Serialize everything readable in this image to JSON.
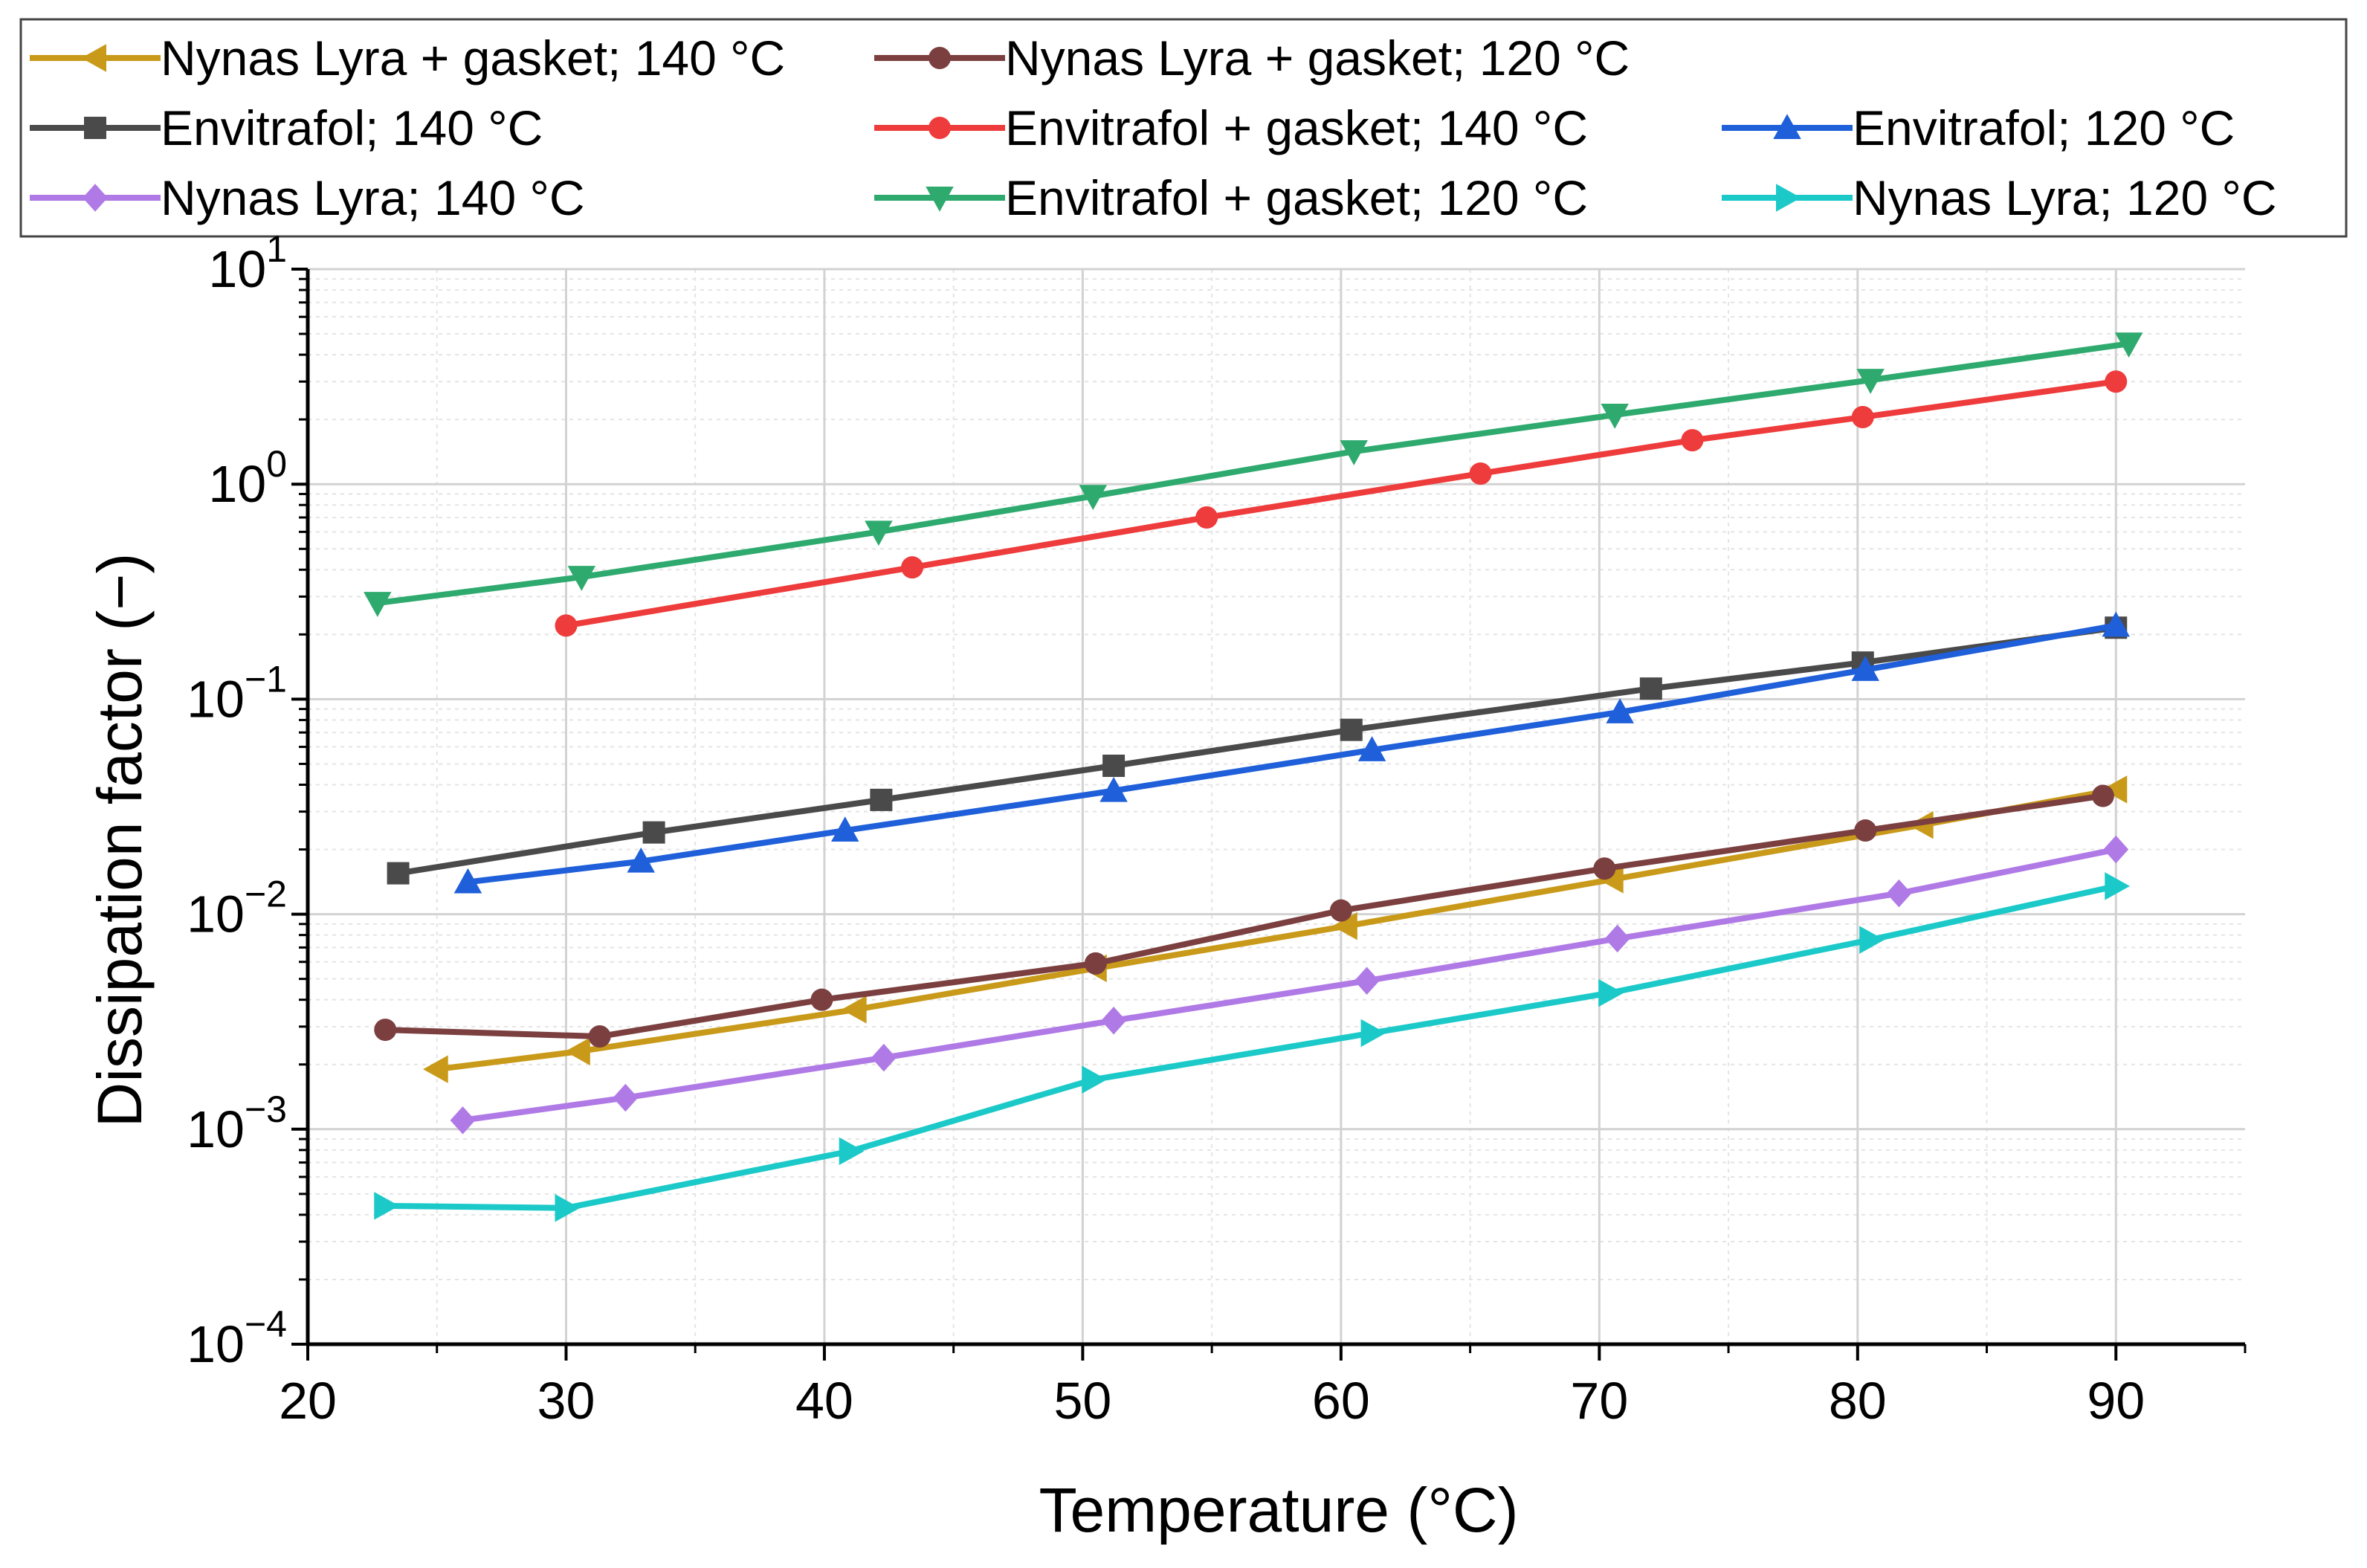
{
  "chart_data": {
    "type": "line",
    "title": "",
    "xlabel": "Temperature (°C)",
    "ylabel": "Dissipation factor (−)",
    "xlim": [
      20,
      95
    ],
    "ylim": [
      0.0001,
      10
    ],
    "yscale": "log",
    "grid": true,
    "legend_position": "top",
    "x_ticks": [
      {
        "value": 20,
        "label": "20"
      },
      {
        "value": 30,
        "label": "30"
      },
      {
        "value": 40,
        "label": "40"
      },
      {
        "value": 50,
        "label": "50"
      },
      {
        "value": 60,
        "label": "60"
      },
      {
        "value": 70,
        "label": "70"
      },
      {
        "value": 80,
        "label": "80"
      },
      {
        "value": 90,
        "label": "90"
      }
    ],
    "y_ticks": [
      {
        "exponent": -4,
        "base": "10",
        "sup": "−4"
      },
      {
        "exponent": -3,
        "base": "10",
        "sup": "−3"
      },
      {
        "exponent": -2,
        "base": "10",
        "sup": "−2"
      },
      {
        "exponent": -1,
        "base": "10",
        "sup": "−1"
      },
      {
        "exponent": 0,
        "base": "10",
        "sup": "0"
      },
      {
        "exponent": 1,
        "base": "10",
        "sup": "1"
      }
    ],
    "series": [
      {
        "name": "Nynas Lyra + gasket; 140 °C",
        "color": "#C99A19",
        "marker": "triangle-left",
        "x": [
          25,
          30.5,
          41.2,
          50.5,
          60.2,
          70.5,
          82.5,
          90
        ],
        "y": [
          0.0019,
          0.0023,
          0.0036,
          0.0056,
          0.0088,
          0.0145,
          0.026,
          0.038
        ]
      },
      {
        "name": "Nynas Lyra + gasket; 120 °C",
        "color": "#7B3F3F",
        "marker": "circle",
        "x": [
          23,
          31.3,
          39.9,
          50.5,
          60,
          70.2,
          80.3,
          89.5
        ],
        "y": [
          0.0029,
          0.0027,
          0.004,
          0.0059,
          0.0104,
          0.0163,
          0.0245,
          0.0355
        ]
      },
      {
        "name": "Envitrafol; 140 °C",
        "color": "#4A4A4A",
        "marker": "square",
        "x": [
          23.5,
          33.4,
          42.2,
          51.2,
          60.4,
          72,
          80.2,
          90
        ],
        "y": [
          0.0155,
          0.024,
          0.034,
          0.049,
          0.072,
          0.112,
          0.148,
          0.215
        ]
      },
      {
        "name": "Envitrafol + gasket; 140 °C",
        "color": "#EE3B3B",
        "marker": "circle",
        "x": [
          30,
          43.4,
          54.8,
          65.4,
          73.6,
          80.2,
          90
        ],
        "y": [
          0.22,
          0.41,
          0.7,
          1.12,
          1.6,
          2.05,
          3.0
        ]
      },
      {
        "name": "Envitrafol; 120 °C",
        "color": "#1F5FD9",
        "marker": "triangle-up",
        "x": [
          26.2,
          32.9,
          40.8,
          51.2,
          61.2,
          70.8,
          80.3,
          90
        ],
        "y": [
          0.0141,
          0.0176,
          0.0245,
          0.0375,
          0.058,
          0.087,
          0.137,
          0.22
        ]
      },
      {
        "name": "Nynas Lyra; 140 °C",
        "color": "#B07AE6",
        "marker": "diamond",
        "x": [
          26,
          32.3,
          42.3,
          51.2,
          61,
          70.7,
          81.6,
          90
        ],
        "y": [
          0.0011,
          0.0014,
          0.00215,
          0.0032,
          0.0049,
          0.0077,
          0.0125,
          0.02
        ]
      },
      {
        "name": "Envitrafol + gasket; 120 °C",
        "color": "#2FAA6F",
        "marker": "triangle-down",
        "x": [
          22.7,
          30.6,
          42.1,
          50.4,
          60.5,
          70.6,
          80.5,
          90.5
        ],
        "y": [
          0.28,
          0.37,
          0.6,
          0.88,
          1.42,
          2.1,
          3.05,
          4.5
        ]
      },
      {
        "name": "Nynas Lyra; 120 °C",
        "color": "#1CC9C9",
        "marker": "triangle-right",
        "x": [
          23,
          30,
          41,
          50.4,
          61.2,
          70.4,
          80.5,
          90
        ],
        "y": [
          0.00044,
          0.00043,
          0.00079,
          0.0017,
          0.0028,
          0.0043,
          0.0076,
          0.0135
        ]
      }
    ]
  }
}
